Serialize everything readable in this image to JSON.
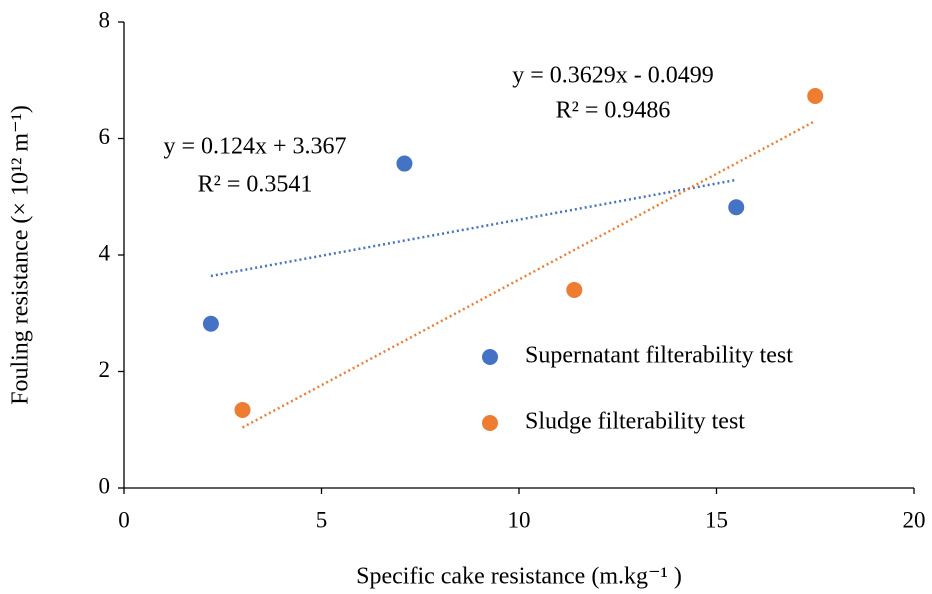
{
  "chart_data": {
    "type": "scatter",
    "x_label": "Specific cake resistance (m.kg⁻¹ )",
    "y_label": "Fouling resistance (× 10¹² m⁻¹)",
    "xlim": [
      0,
      20
    ],
    "xticks": [
      0,
      5,
      10,
      15,
      20
    ],
    "ylim": [
      0,
      8
    ],
    "yticks": [
      0,
      2,
      4,
      6,
      8
    ],
    "grid": false,
    "legend": "right",
    "series": [
      {
        "name": "Supernatant filterability test",
        "color": "#4472c4",
        "x": [
          2.2,
          7.1,
          15.5
        ],
        "values": [
          2.82,
          5.57,
          4.82
        ],
        "trendline": {
          "slope": 0.124,
          "intercept": 3.367,
          "equation": "y = 0.124x + 3.367",
          "r2": "R² = 0.3541"
        }
      },
      {
        "name": "Sludge filterability test",
        "color": "#ed7d31",
        "x": [
          3.0,
          11.4,
          17.5
        ],
        "values": [
          1.34,
          3.4,
          6.73
        ],
        "trendline": {
          "slope": 0.3629,
          "intercept": -0.0499,
          "equation": "y = 0.3629x - 0.0499",
          "r2": "R² = 0.9486"
        }
      }
    ]
  }
}
